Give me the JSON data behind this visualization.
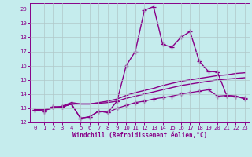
{
  "title": "",
  "xlabel": "Windchill (Refroidissement éolien,°C)",
  "ylabel": "",
  "xlim": [
    -0.5,
    23.5
  ],
  "ylim": [
    12,
    20.4
  ],
  "yticks": [
    12,
    13,
    14,
    15,
    16,
    17,
    18,
    19,
    20
  ],
  "xticks": [
    0,
    1,
    2,
    3,
    4,
    5,
    6,
    7,
    8,
    9,
    10,
    11,
    12,
    13,
    14,
    15,
    16,
    17,
    18,
    19,
    20,
    21,
    22,
    23
  ],
  "background_color": "#c5eced",
  "grid_color": "#b0c8c8",
  "line_color": "#880088",
  "lines": [
    {
      "x": [
        0,
        1,
        2,
        3,
        4,
        5,
        6,
        7,
        8,
        9,
        10,
        11,
        12,
        13,
        14,
        15,
        16,
        17,
        18,
        19,
        20,
        21,
        22,
        23
      ],
      "y": [
        12.9,
        12.8,
        13.1,
        13.1,
        13.3,
        12.3,
        12.4,
        12.8,
        12.7,
        13.0,
        13.2,
        13.4,
        13.5,
        13.65,
        13.75,
        13.85,
        14.0,
        14.1,
        14.2,
        14.3,
        13.85,
        13.9,
        13.85,
        13.7
      ],
      "marker": "+",
      "linewidth": 0.9,
      "markersize": 4
    },
    {
      "x": [
        0,
        1,
        2,
        3,
        4,
        5,
        6,
        7,
        8,
        9,
        10,
        11,
        12,
        13,
        14,
        15,
        16,
        17,
        18,
        19,
        20,
        21,
        22,
        23
      ],
      "y": [
        12.9,
        12.9,
        13.0,
        13.1,
        13.3,
        13.3,
        13.3,
        13.35,
        13.4,
        13.5,
        13.7,
        13.85,
        14.0,
        14.15,
        14.3,
        14.45,
        14.6,
        14.7,
        14.8,
        14.9,
        15.0,
        15.05,
        15.1,
        15.15
      ],
      "marker": null,
      "linewidth": 1.0,
      "markersize": 0
    },
    {
      "x": [
        0,
        1,
        2,
        3,
        4,
        5,
        6,
        7,
        8,
        9,
        10,
        11,
        12,
        13,
        14,
        15,
        16,
        17,
        18,
        19,
        20,
        21,
        22,
        23
      ],
      "y": [
        12.9,
        12.9,
        13.0,
        13.15,
        13.4,
        13.3,
        13.3,
        13.4,
        13.5,
        13.65,
        13.9,
        14.1,
        14.25,
        14.4,
        14.6,
        14.75,
        14.9,
        15.0,
        15.1,
        15.2,
        15.3,
        15.35,
        15.45,
        15.5
      ],
      "marker": null,
      "linewidth": 1.0,
      "markersize": 0
    },
    {
      "x": [
        0,
        1,
        2,
        3,
        4,
        5,
        6,
        7,
        8,
        9,
        10,
        11,
        12,
        13,
        14,
        15,
        16,
        17,
        18,
        19,
        20,
        21,
        22,
        23
      ],
      "y": [
        12.9,
        12.8,
        13.1,
        13.1,
        13.3,
        12.3,
        12.4,
        12.8,
        12.7,
        13.5,
        16.0,
        17.0,
        19.9,
        20.15,
        17.5,
        17.3,
        18.0,
        18.4,
        16.3,
        15.6,
        15.55,
        13.9,
        13.85,
        13.65
      ],
      "marker": "+",
      "linewidth": 1.0,
      "markersize": 4
    }
  ]
}
